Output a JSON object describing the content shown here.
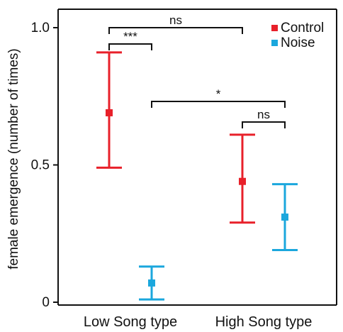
{
  "chart_data": {
    "type": "scatter",
    "xlabel": "",
    "ylabel": "female emergence (number of times)",
    "ylim": [
      0,
      1.0
    ],
    "y_ticks": [
      {
        "value": 0,
        "label": "0"
      },
      {
        "value": 0.5,
        "label": "0.5"
      },
      {
        "value": 1.0,
        "label": "1.0"
      }
    ],
    "categories": [
      "Low Song type",
      "High Song type"
    ],
    "series": [
      {
        "name": "Control",
        "color": "#e8202a",
        "points": [
          {
            "category": "Low Song type",
            "mean": 0.69,
            "lower": 0.49,
            "upper": 0.91
          },
          {
            "category": "High Song type",
            "mean": 0.44,
            "lower": 0.29,
            "upper": 0.61
          }
        ]
      },
      {
        "name": "Noise",
        "color": "#1ba7dd",
        "points": [
          {
            "category": "Low Song type",
            "mean": 0.07,
            "lower": 0.01,
            "upper": 0.13
          },
          {
            "category": "High Song type",
            "mean": 0.31,
            "lower": 0.19,
            "upper": 0.43
          }
        ]
      }
    ],
    "legend": {
      "position": "top-right",
      "entries": [
        "Control",
        "Noise"
      ]
    },
    "grid": false,
    "annotations": [
      {
        "label": "ns",
        "between": [
          "Low Song type · Control",
          "High Song type · Control"
        ]
      },
      {
        "label": "***",
        "between": [
          "Low Song type · Control",
          "Low Song type · Noise"
        ]
      },
      {
        "label": "*",
        "between": [
          "Low Song type · Noise",
          "High Song type · Noise"
        ]
      },
      {
        "label": "ns",
        "between": [
          "High Song type · Control",
          "High Song type · Noise"
        ]
      }
    ]
  }
}
